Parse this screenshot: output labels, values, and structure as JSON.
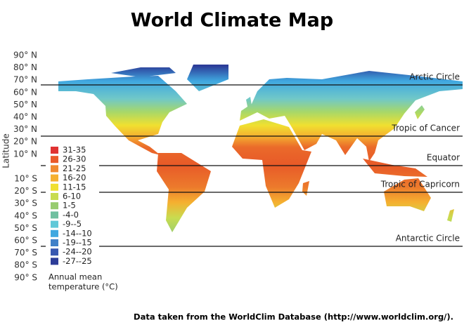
{
  "title": "World Climate Map",
  "y_axis_label": "Latitude",
  "latitude_labels": [
    "90° N",
    "80° N",
    "70° N",
    "60° N",
    "50° N",
    "40° N",
    "30° N",
    "20° N",
    "10° N",
    "10° S",
    "20° S",
    "30° S",
    "40° S",
    "50° S",
    "60° S",
    "70° S",
    "80° S",
    "90° S"
  ],
  "reference_lines": [
    "Arctic Circle",
    "Tropic of Cancer",
    "Equator",
    "Tropic of Capricorn",
    "Antarctic Circle"
  ],
  "legend": {
    "items": [
      {
        "label": "31-35",
        "color": "#e03232"
      },
      {
        "label": "26-30",
        "color": "#ea5a2a"
      },
      {
        "label": "21-25",
        "color": "#f08a30"
      },
      {
        "label": "16-20",
        "color": "#f5b030"
      },
      {
        "label": "11-15",
        "color": "#f0e030"
      },
      {
        "label": "6-10",
        "color": "#c8dc50"
      },
      {
        "label": "1-5",
        "color": "#98cc70"
      },
      {
        "label": "-4-0",
        "color": "#70c0a0"
      },
      {
        "label": "-9--5",
        "color": "#60c8d8"
      },
      {
        "label": "-14--10",
        "color": "#40a8e0"
      },
      {
        "label": "-19--15",
        "color": "#4080c8"
      },
      {
        "label": "-24--20",
        "color": "#3858b0"
      },
      {
        "label": "-27--25",
        "color": "#2c3c98"
      }
    ],
    "title_lines": [
      "Annual mean",
      "temperature (°C)"
    ]
  },
  "source": "Data taken from the WorldClim Database (http://www.worldclim.org/)."
}
